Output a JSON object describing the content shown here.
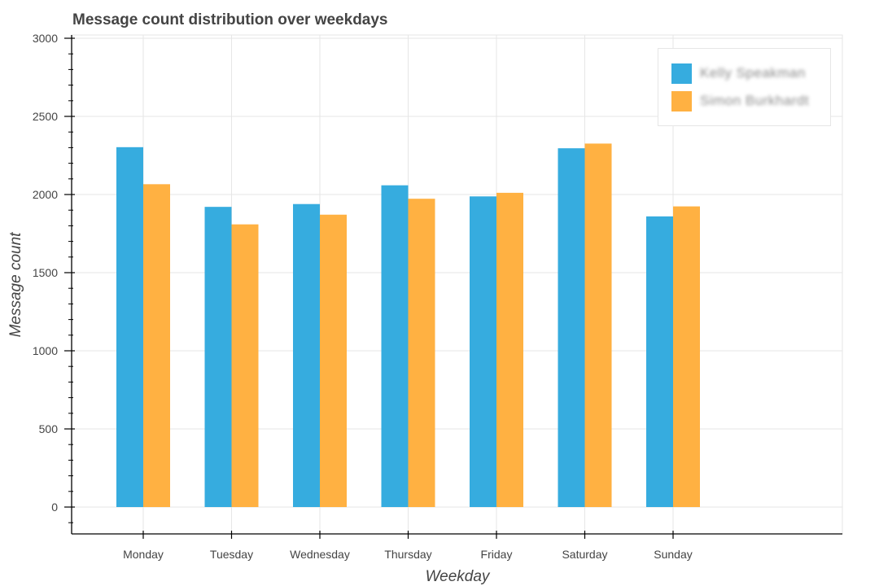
{
  "chart_data": {
    "type": "bar",
    "title": "Message count distribution over weekdays",
    "xlabel": "Weekday",
    "ylabel": "Message count",
    "categories": [
      "Monday",
      "Tuesday",
      "Wednesday",
      "Thursday",
      "Friday",
      "Saturday",
      "Sunday"
    ],
    "series": [
      {
        "name": "Kelly Speakman",
        "color": "#36acdf",
        "values": [
          2303,
          1921,
          1939,
          2059,
          1988,
          2296,
          1860
        ]
      },
      {
        "name": "Simon Burkhardt",
        "color": "#ffb142",
        "values": [
          2066,
          1809,
          1871,
          1973,
          2011,
          2326,
          1924
        ]
      }
    ],
    "ylim": [
      -175,
      3010
    ],
    "yticks": [
      0,
      500,
      1000,
      1500,
      2000,
      2500,
      3000
    ],
    "ytick_labels": [
      "0",
      "500",
      "1000",
      "1500",
      "2000",
      "2500",
      "3000"
    ],
    "grid": true,
    "legend_position": "top-right"
  }
}
